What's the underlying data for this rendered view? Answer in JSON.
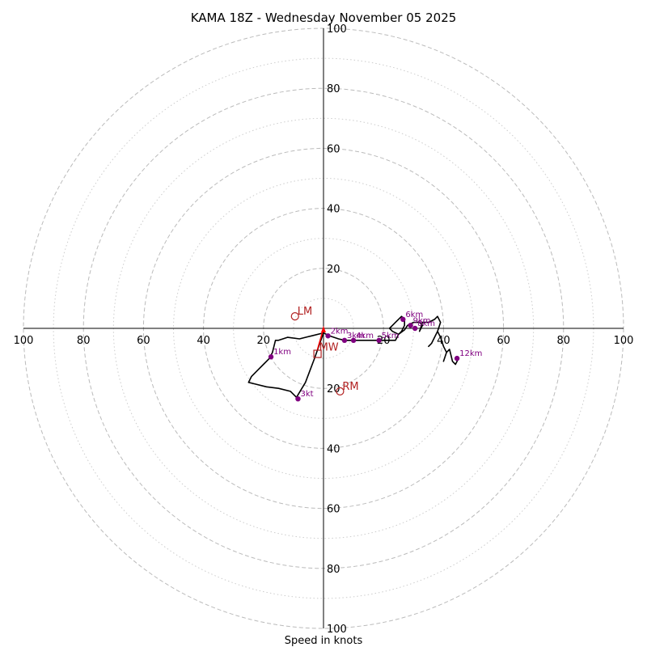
{
  "chart_data": {
    "type": "hodograph",
    "title": "KAMA 18Z - Wednesday November 05 2025",
    "xlabel": "Speed in knots",
    "range_knots": 100,
    "ring_major_knots": [
      20,
      40,
      60,
      80,
      100
    ],
    "ring_minor_knots": [
      10,
      30,
      50,
      70,
      90
    ],
    "tick_labels": [
      "20",
      "40",
      "60",
      "80",
      "100"
    ],
    "trace": [
      [
        0,
        -1.5
      ],
      [
        -4,
        -2.5
      ],
      [
        -8,
        -3.5
      ],
      [
        -12,
        -3
      ],
      [
        -15,
        -4
      ],
      [
        -16,
        -4
      ],
      [
        -17,
        -8
      ],
      [
        -18,
        -10
      ],
      [
        -20,
        -12
      ],
      [
        -22,
        -14
      ],
      [
        -24,
        -16
      ],
      [
        -25,
        -18
      ],
      [
        -23,
        -18.5
      ],
      [
        -19,
        -19.5
      ],
      [
        -15,
        -20
      ],
      [
        -11,
        -21
      ],
      [
        -9,
        -23
      ],
      [
        -6,
        -18
      ],
      [
        -3,
        -10
      ],
      [
        0,
        -1.5
      ],
      [
        2,
        -2.5
      ],
      [
        5,
        -3.5
      ],
      [
        7,
        -4
      ],
      [
        10,
        -4
      ],
      [
        13,
        -4
      ],
      [
        16,
        -4
      ],
      [
        20,
        -4
      ],
      [
        24,
        -4
      ],
      [
        25,
        -2
      ],
      [
        23,
        -1
      ],
      [
        22,
        0
      ],
      [
        23,
        1
      ],
      [
        24,
        2
      ],
      [
        26,
        4
      ],
      [
        27,
        3
      ],
      [
        27,
        1
      ],
      [
        26,
        -1
      ],
      [
        25,
        -2
      ],
      [
        27,
        -0.5
      ],
      [
        28,
        1
      ],
      [
        30,
        2
      ],
      [
        32,
        2
      ],
      [
        33,
        1
      ],
      [
        32,
        -1
      ],
      [
        33,
        2
      ],
      [
        35,
        2
      ],
      [
        37,
        3
      ],
      [
        38,
        4
      ],
      [
        39,
        2
      ],
      [
        38,
        -1
      ],
      [
        37,
        -3
      ],
      [
        36,
        -5
      ],
      [
        35,
        -6
      ],
      [
        36,
        -5
      ],
      [
        37,
        -3
      ],
      [
        38,
        -1
      ],
      [
        39,
        -3
      ],
      [
        40,
        -6
      ],
      [
        41,
        -8
      ],
      [
        40,
        -11
      ],
      [
        41,
        -8
      ],
      [
        42,
        -7
      ],
      [
        42.5,
        -9
      ],
      [
        43,
        -11
      ],
      [
        44,
        -12
      ],
      [
        45,
        -10
      ]
    ],
    "height_markers": [
      {
        "label": "2km",
        "u": 1.5,
        "v": -2.5
      },
      {
        "label": "1km",
        "u": -17.5,
        "v": -9.5
      },
      {
        "label": "3kt",
        "u": -8.5,
        "v": -23.5
      },
      {
        "label": "3km",
        "u": 7,
        "v": -4
      },
      {
        "label": "4km",
        "u": 10,
        "v": -4
      },
      {
        "label": "5km",
        "u": 18.5,
        "v": -4
      },
      {
        "label": "6km",
        "u": 26.5,
        "v": 3
      },
      {
        "label": "9km",
        "u": 29,
        "v": 1
      },
      {
        "label": "8km",
        "u": 30.5,
        "v": 0
      },
      {
        "label": "12km",
        "u": 44.5,
        "v": -10
      }
    ],
    "motion_markers": [
      {
        "label": "LM",
        "u": -9.5,
        "v": 4,
        "shape": "circle"
      },
      {
        "label": "RM",
        "u": 5.5,
        "v": -21,
        "shape": "circle"
      },
      {
        "label": "MW",
        "u": -2,
        "v": -8.5,
        "shape": "square"
      }
    ],
    "shear_vector": {
      "u0": -2,
      "v0": -7,
      "u1": 0,
      "v1": 0
    },
    "colors": {
      "trace": "#000000",
      "height_marker": "#800080",
      "motion_marker": "#b22222",
      "shear": "#ff0000",
      "rings": "#bbbbbb",
      "axes": "#000000"
    }
  }
}
